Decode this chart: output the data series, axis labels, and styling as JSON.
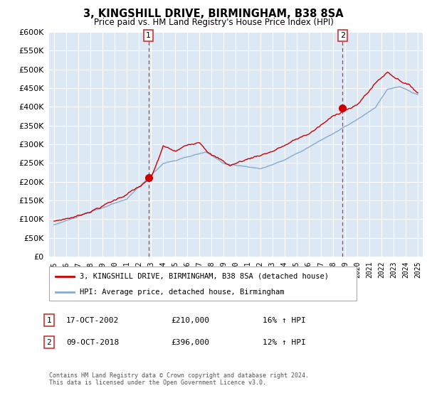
{
  "title": "3, KINGSHILL DRIVE, BIRMINGHAM, B38 8SA",
  "subtitle": "Price paid vs. HM Land Registry's House Price Index (HPI)",
  "legend_label_red": "3, KINGSHILL DRIVE, BIRMINGHAM, B38 8SA (detached house)",
  "legend_label_blue": "HPI: Average price, detached house, Birmingham",
  "annotation1_label": "1",
  "annotation1_date": "17-OCT-2002",
  "annotation1_price": "£210,000",
  "annotation1_hpi": "16% ↑ HPI",
  "annotation1_year": 2002.79,
  "annotation1_value": 210000,
  "annotation2_label": "2",
  "annotation2_date": "09-OCT-2018",
  "annotation2_price": "£396,000",
  "annotation2_hpi": "12% ↑ HPI",
  "annotation2_year": 2018.79,
  "annotation2_value": 396000,
  "footer": "Contains HM Land Registry data © Crown copyright and database right 2024.\nThis data is licensed under the Open Government Licence v3.0.",
  "ylim": [
    0,
    600000
  ],
  "yticks": [
    0,
    50000,
    100000,
    150000,
    200000,
    250000,
    300000,
    350000,
    400000,
    450000,
    500000,
    550000,
    600000
  ],
  "red_color": "#cc0000",
  "blue_color": "#88aacc",
  "dashed_color": "#cc3333",
  "plot_bg_color": "#dde8f5",
  "grid_color": "#ffffff"
}
